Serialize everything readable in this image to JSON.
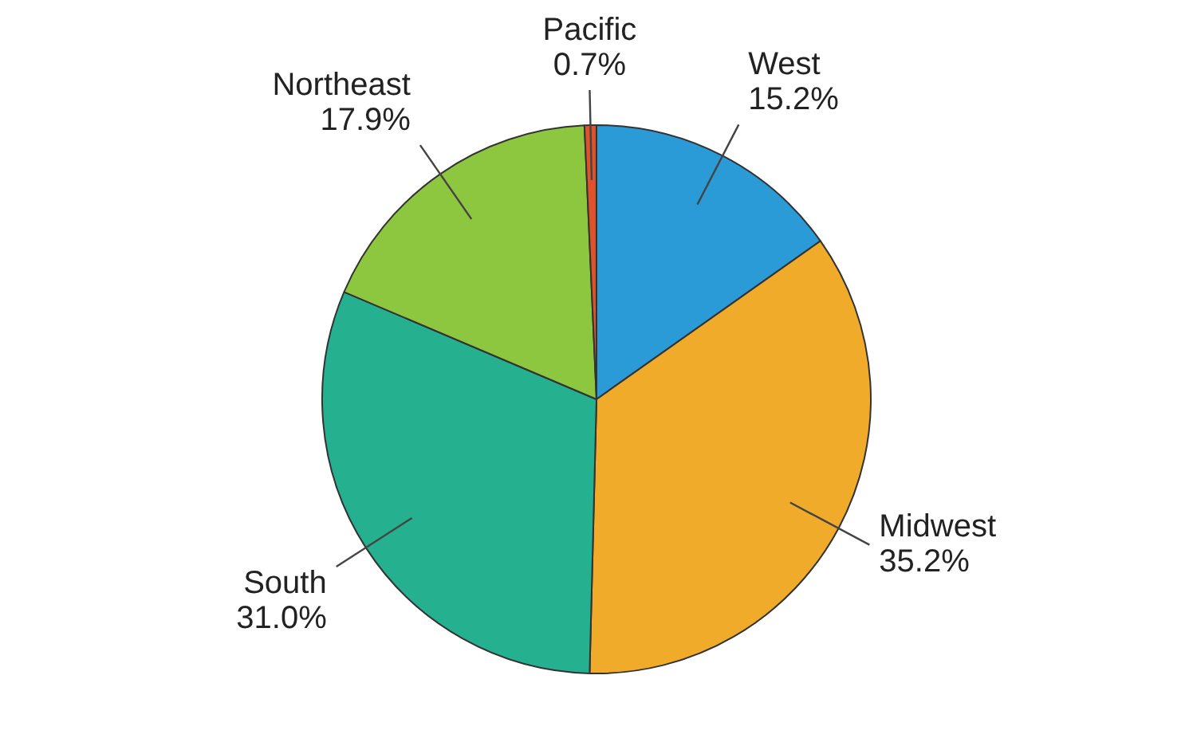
{
  "chart_data": {
    "type": "pie",
    "categories": [
      "West",
      "Midwest",
      "South",
      "Northeast",
      "Pacific"
    ],
    "values": [
      15.2,
      35.2,
      31.0,
      17.9,
      0.7
    ],
    "value_labels": [
      "15.2%",
      "35.2%",
      "31.0%",
      "17.9%",
      "0.7%"
    ],
    "colors": [
      "#2a9bd6",
      "#f0ab2a",
      "#25b08f",
      "#8dc63f",
      "#e0522a"
    ],
    "legend": false
  }
}
